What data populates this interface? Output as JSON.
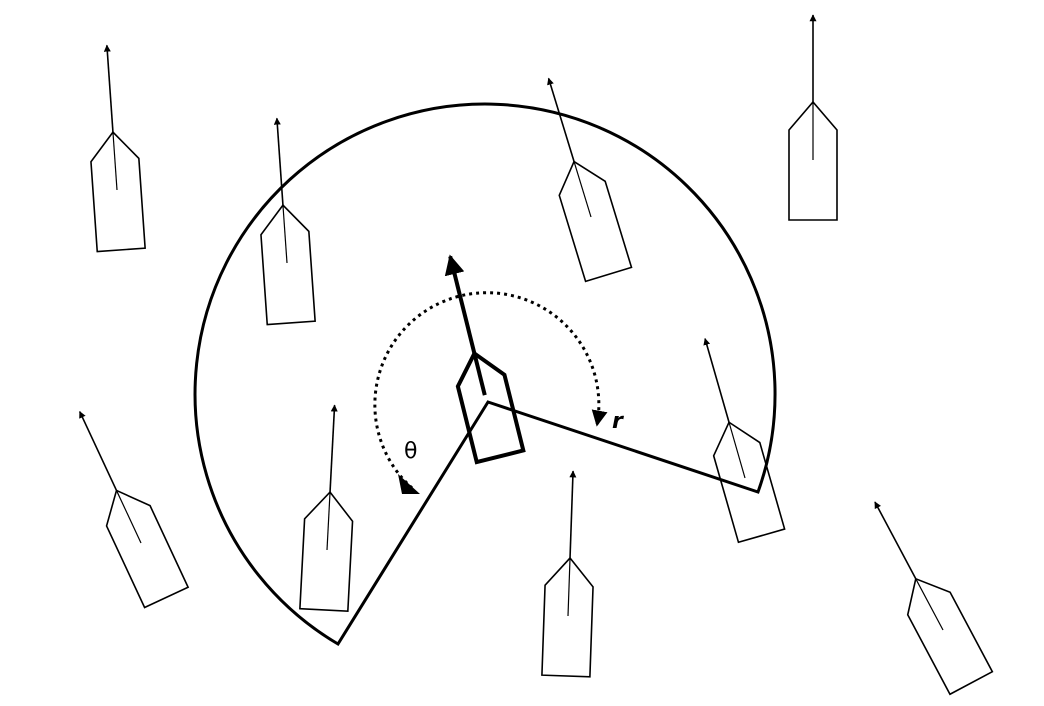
{
  "labels": {
    "theta": "θ",
    "r": "r"
  }
}
